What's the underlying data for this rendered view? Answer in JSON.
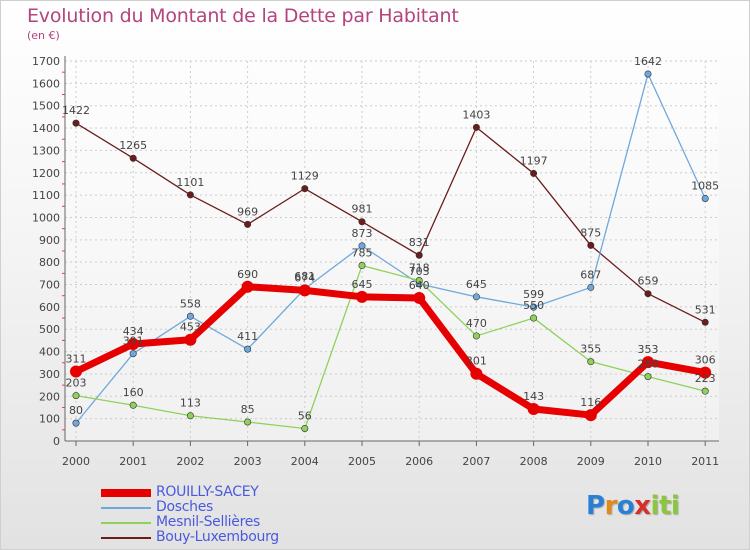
{
  "chart_data": {
    "type": "line",
    "title": "Evolution du Montant de la Dette par Habitant",
    "subtitle": "(en €)",
    "x": [
      "2000",
      "2001",
      "2002",
      "2003",
      "2004",
      "2005",
      "2006",
      "2007",
      "2008",
      "2009",
      "2010",
      "2011"
    ],
    "ylim": [
      0,
      1700
    ],
    "yticks": [
      0,
      100,
      200,
      300,
      400,
      500,
      600,
      700,
      800,
      900,
      1000,
      1100,
      1200,
      1300,
      1400,
      1500,
      1600,
      1700
    ],
    "grid": true,
    "legend_position": "bottom-left",
    "series": [
      {
        "name": "ROUILLY-SACEY",
        "color": "#e60000",
        "values": [
          311,
          434,
          453,
          690,
          674,
          645,
          640,
          301,
          143,
          116,
          353,
          306
        ]
      },
      {
        "name": "Dosches",
        "color": "#6fa8dc",
        "values": [
          80,
          391,
          558,
          411,
          681,
          873,
          703,
          645,
          599,
          687,
          1642,
          1085
        ]
      },
      {
        "name": "Mesnil-Sellières",
        "color": "#8fd15a",
        "values": [
          203,
          160,
          113,
          85,
          56,
          785,
          718,
          470,
          550,
          355,
          288,
          223
        ]
      },
      {
        "name": "Bouy-Luxembourg",
        "color": "#6b1c1c",
        "values": [
          1422,
          1265,
          1101,
          969,
          1129,
          981,
          831,
          1403,
          1197,
          875,
          659,
          531
        ]
      }
    ]
  },
  "logo": {
    "letters": [
      "P",
      "r",
      "o",
      "x",
      "i",
      "t",
      "i"
    ],
    "colors": [
      "#2a7fd4",
      "#e08a1a",
      "#2a7fd4",
      "#d6302a",
      "#8cc63e",
      "#8cc63e",
      "#8cc63e"
    ]
  }
}
